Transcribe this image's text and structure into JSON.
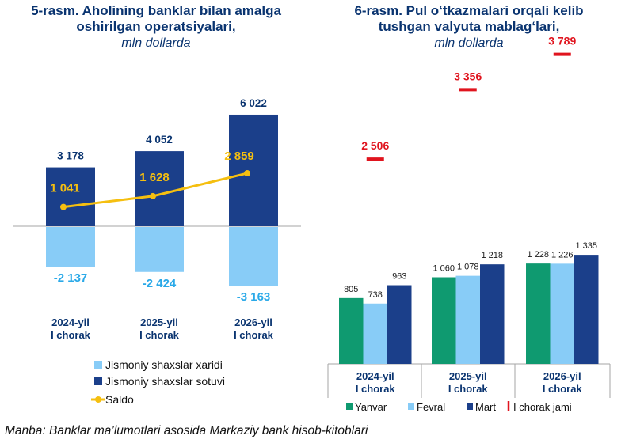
{
  "colors": {
    "title": "#0a3470",
    "dark_blue": "#1b3f8a",
    "light_blue": "#88ccf7",
    "saldo": "#f5bf10",
    "label_light": "#2aa9e8",
    "green": "#0f9a70",
    "red": "#e0141e",
    "axis": "#a6a6a6"
  },
  "left_title": {
    "line1": "5-rasm. Aholining banklar bilan amalga",
    "line2": "oshirilgan operatsiyalari,",
    "line3": "mln dollarda"
  },
  "right_title": {
    "line1": "6-rasm. Pul o‘tkazmalari orqali kelib",
    "line2": "tushgan valyuta mablag‘lari,",
    "line3": "mln dollarda"
  },
  "chart_data": [
    {
      "type": "bar",
      "title": "5-rasm. Aholining banklar bilan amalga oshirilgan operatsiyalari, mln dollarda",
      "categories": [
        [
          "2024-yil",
          "I chorak"
        ],
        [
          "2025-yil",
          "I chorak"
        ],
        [
          "2026-yil",
          "I chorak"
        ]
      ],
      "series": [
        {
          "name": "Jismoniy shaxslar xaridi",
          "kind": "bar",
          "values": [
            -2137,
            -2424,
            -3163
          ],
          "labels": [
            "-2 137",
            "-2 424",
            "-3 163"
          ]
        },
        {
          "name": "Jismoniy shaxslar sotuvi",
          "kind": "bar",
          "values": [
            3178,
            4052,
            6022
          ],
          "labels": [
            "3 178",
            "4 052",
            "6 022"
          ]
        },
        {
          "name": "Saldo",
          "kind": "line",
          "values": [
            1041,
            1628,
            2859
          ],
          "labels": [
            "1 041",
            "1 628",
            "2 859"
          ]
        }
      ],
      "ylim": [
        -3500,
        7000
      ]
    },
    {
      "type": "bar",
      "title": "6-rasm. Pul o‘tkazmalari orqali kelib tushgan valyuta mablag‘lari, mln dollarda",
      "categories": [
        [
          "2024-yil",
          "I chorak"
        ],
        [
          "2025-yil",
          "I chorak"
        ],
        [
          "2026-yil",
          "I chorak"
        ]
      ],
      "series": [
        {
          "name": "Yanvar",
          "values": [
            805,
            1060,
            1228
          ],
          "labels": [
            "805",
            "1 060",
            "1 228"
          ]
        },
        {
          "name": "Fevral",
          "values": [
            738,
            1078,
            1226
          ],
          "labels": [
            "738",
            "1 078",
            "1 226"
          ]
        },
        {
          "name": "Mart",
          "values": [
            963,
            1218,
            1335
          ],
          "labels": [
            "963",
            "1 218",
            "1 335"
          ]
        },
        {
          "name": "I chorak jami",
          "kind": "marker",
          "values": [
            2506,
            3356,
            3789
          ],
          "labels": [
            "2 506",
            "3 356",
            "3 789"
          ]
        }
      ],
      "ylim": [
        0,
        4100
      ]
    }
  ],
  "source": "Manba: Banklar ma’lumotlari asosida Markaziy bank hisob-kitoblari"
}
